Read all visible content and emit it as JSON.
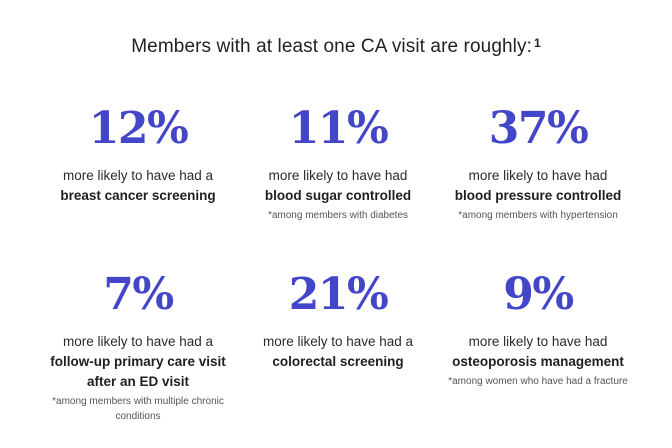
{
  "headline": {
    "text": "Members with at least one CA visit are roughly:",
    "footnote_marker": "1"
  },
  "stats": [
    {
      "value": "12%",
      "lead": "more likely to have had a",
      "emphasis": [
        "breast cancer screening"
      ],
      "note": ""
    },
    {
      "value": "11%",
      "lead": "more likely to have had",
      "emphasis": [
        "blood sugar controlled"
      ],
      "note": "*among members with diabetes"
    },
    {
      "value": "37%",
      "lead": "more likely to have had",
      "emphasis": [
        "blood pressure controlled"
      ],
      "note": "*among members with hypertension"
    },
    {
      "value": "7%",
      "lead": "more likely to have had a",
      "emphasis": [
        "follow-up primary care visit",
        "after an ED visit"
      ],
      "note": "*among members with multiple chronic conditions"
    },
    {
      "value": "21%",
      "lead": "more likely to have had a",
      "emphasis": [
        "colorectal screening"
      ],
      "note": ""
    },
    {
      "value": "9%",
      "lead": "more likely to have had",
      "emphasis": [
        "osteoporosis management"
      ],
      "note": "*among women who have had a fracture"
    }
  ],
  "colors": {
    "stat_value": "#4346c8",
    "text": "#222222",
    "note": "#555555"
  }
}
